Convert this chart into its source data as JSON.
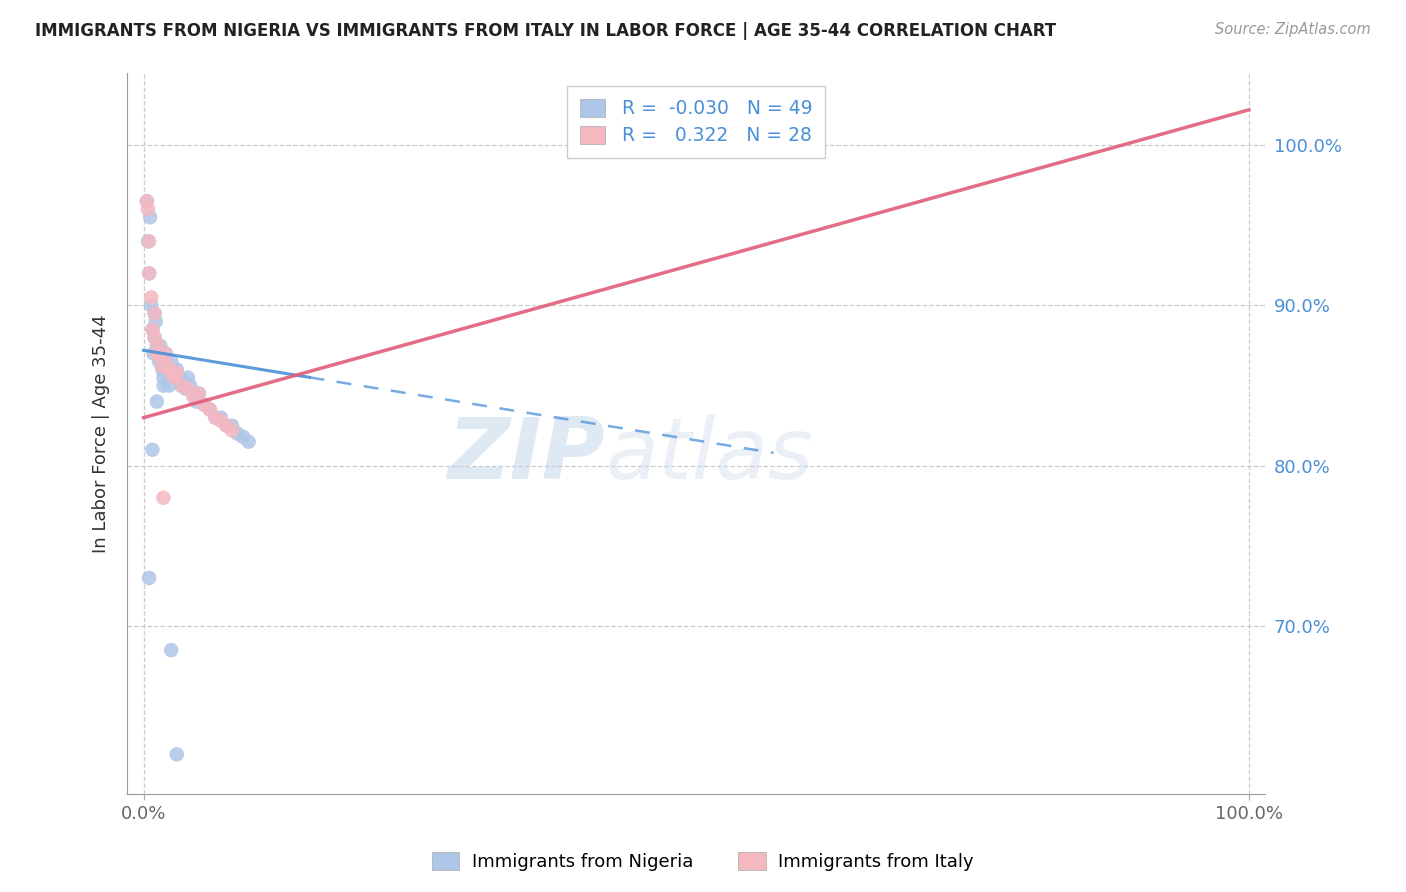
{
  "title": "IMMIGRANTS FROM NIGERIA VS IMMIGRANTS FROM ITALY IN LABOR FORCE | AGE 35-44 CORRELATION CHART",
  "source": "Source: ZipAtlas.com",
  "ylabel": "In Labor Force | Age 35-44",
  "xlim": [
    -0.015,
    1.015
  ],
  "ylim": [
    0.595,
    1.045
  ],
  "yticks": [
    0.7,
    0.8,
    0.9,
    1.0
  ],
  "ytick_labels": [
    "70.0%",
    "80.0%",
    "90.0%",
    "100.0%"
  ],
  "xtick_labels": [
    "0.0%",
    "100.0%"
  ],
  "xticks": [
    0.0,
    1.0
  ],
  "nigeria_R": -0.03,
  "nigeria_N": 49,
  "italy_R": 0.322,
  "italy_N": 28,
  "nigeria_color": "#aec6e8",
  "italy_color": "#f4b8c1",
  "nigeria_line_color": "#4a90d9",
  "nigeria_line_solid_end": 0.15,
  "nigeria_line_dash_end": 0.57,
  "italy_line_color": "#e05c7a",
  "nigeria_x": [
    0.003,
    0.004,
    0.005,
    0.006,
    0.007,
    0.008,
    0.009,
    0.01,
    0.01,
    0.011,
    0.012,
    0.013,
    0.014,
    0.015,
    0.016,
    0.017,
    0.018,
    0.02,
    0.021,
    0.022,
    0.023,
    0.025,
    0.026,
    0.028,
    0.03,
    0.032,
    0.034,
    0.036,
    0.038,
    0.04,
    0.042,
    0.045,
    0.048,
    0.05,
    0.055,
    0.06,
    0.065,
    0.07,
    0.075,
    0.08,
    0.085,
    0.09,
    0.095,
    0.005,
    0.008,
    0.012,
    0.018,
    0.025,
    0.03
  ],
  "nigeria_y": [
    0.965,
    0.94,
    0.92,
    0.955,
    0.9,
    0.885,
    0.87,
    0.895,
    0.88,
    0.89,
    0.875,
    0.87,
    0.865,
    0.875,
    0.865,
    0.86,
    0.855,
    0.87,
    0.86,
    0.855,
    0.85,
    0.865,
    0.858,
    0.855,
    0.86,
    0.855,
    0.85,
    0.853,
    0.848,
    0.855,
    0.85,
    0.845,
    0.84,
    0.845,
    0.838,
    0.835,
    0.83,
    0.83,
    0.825,
    0.825,
    0.82,
    0.818,
    0.815,
    0.73,
    0.81,
    0.84,
    0.85,
    0.685,
    0.62
  ],
  "italy_x": [
    0.003,
    0.004,
    0.005,
    0.007,
    0.008,
    0.01,
    0.012,
    0.013,
    0.015,
    0.017,
    0.02,
    0.022,
    0.025,
    0.028,
    0.03,
    0.035,
    0.04,
    0.045,
    0.05,
    0.055,
    0.06,
    0.065,
    0.07,
    0.075,
    0.08,
    0.005,
    0.01,
    0.018
  ],
  "italy_y": [
    0.965,
    0.96,
    0.92,
    0.905,
    0.885,
    0.88,
    0.87,
    0.875,
    0.868,
    0.862,
    0.87,
    0.862,
    0.858,
    0.855,
    0.858,
    0.85,
    0.848,
    0.843,
    0.845,
    0.838,
    0.835,
    0.83,
    0.828,
    0.825,
    0.822,
    0.94,
    0.895,
    0.78
  ],
  "nigeria_line_start_y": 0.872,
  "nigeria_line_end_y": 0.808,
  "italy_line_start_x": 0.0,
  "italy_line_start_y": 0.83,
  "italy_line_end_x": 1.0,
  "italy_line_end_y": 1.022,
  "watermark_line1": "ZIP",
  "watermark_line2": "atlas",
  "background_color": "#ffffff",
  "grid_color": "#cccccc"
}
